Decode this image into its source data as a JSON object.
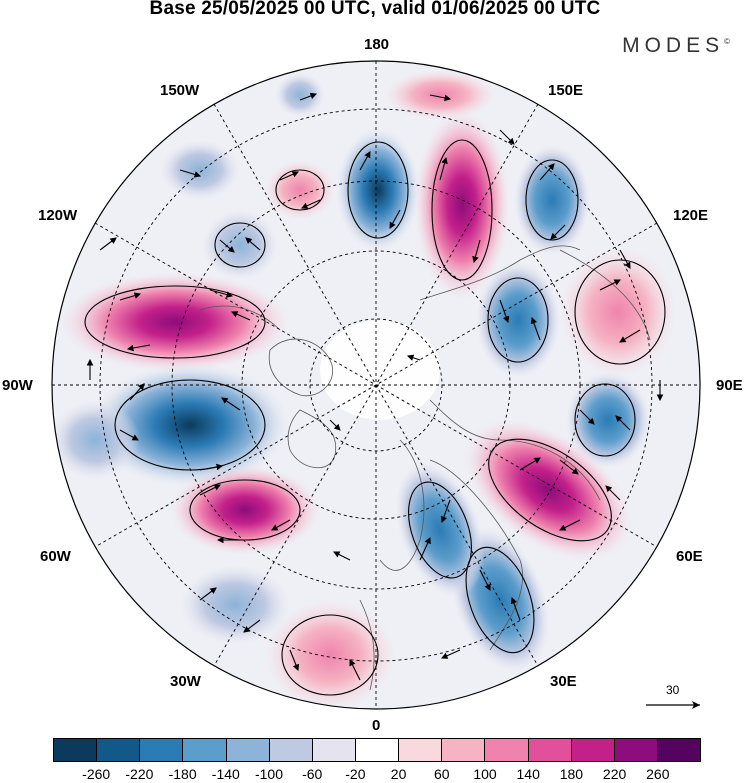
{
  "title": "Base 25/05/2025 00 UTC, valid 01/06/2025 00 UTC",
  "brand": "MODES",
  "brand_mark": "©",
  "longitude_labels": {
    "top": "180",
    "top_left": "150W",
    "top_right": "150E",
    "upper_left": "120W",
    "upper_right": "120E",
    "left": "90W",
    "right": "90E",
    "lower_left": "60W",
    "lower_right": "60E",
    "bottom_left": "30W",
    "bottom_right": "30E",
    "bottom": "0"
  },
  "reference_vector": "30",
  "colorbar": {
    "colors": [
      "#0b3a5c",
      "#12598a",
      "#2b7bb5",
      "#5c9dcb",
      "#8db3d8",
      "#bec9e2",
      "#e4e3ef",
      "#ffffff",
      "#f9d9de",
      "#f5b3c3",
      "#ef83ad",
      "#e24f9b",
      "#c3208a",
      "#8c0d7b",
      "#54045f"
    ],
    "ticks": [
      "-260",
      "-220",
      "-180",
      "-140",
      "-100",
      "-60",
      "-20",
      "20",
      "60",
      "100",
      "140",
      "180",
      "220",
      "260"
    ]
  },
  "anomaly_centers": [
    {
      "sign": "negative",
      "level": "-180",
      "region": "north pacific 165W"
    },
    {
      "sign": "positive",
      "level": "220",
      "region": "east siberia 165E"
    },
    {
      "sign": "negative",
      "level": "-140",
      "region": "kamchatka 130E"
    },
    {
      "sign": "positive",
      "level": "100",
      "region": "central siberia 100E"
    },
    {
      "sign": "negative",
      "level": "-140",
      "region": "siberia 105E"
    },
    {
      "sign": "negative",
      "level": "-140",
      "region": "central asia 85E"
    },
    {
      "sign": "positive",
      "level": "220",
      "region": "west siberia 60E"
    },
    {
      "sign": "negative",
      "level": "-100",
      "region": "scandinavia 30E"
    },
    {
      "sign": "negative",
      "level": "-60",
      "region": "europe 15E"
    },
    {
      "sign": "positive",
      "level": "100",
      "region": "north atlantic 10W"
    },
    {
      "sign": "negative",
      "level": "-100",
      "region": "north atlantic 40W"
    },
    {
      "sign": "positive",
      "level": "220",
      "region": "eastern canada 65W"
    },
    {
      "sign": "negative",
      "level": "-260",
      "region": "hudson bay 85W"
    },
    {
      "sign": "positive",
      "level": "220",
      "region": "western canada 105W"
    },
    {
      "sign": "positive",
      "level": "140",
      "region": "northeast pacific 100W"
    },
    {
      "sign": "negative",
      "level": "-60",
      "region": "alaska 140W"
    },
    {
      "sign": "positive",
      "level": "60",
      "region": "bering 175W"
    }
  ]
}
